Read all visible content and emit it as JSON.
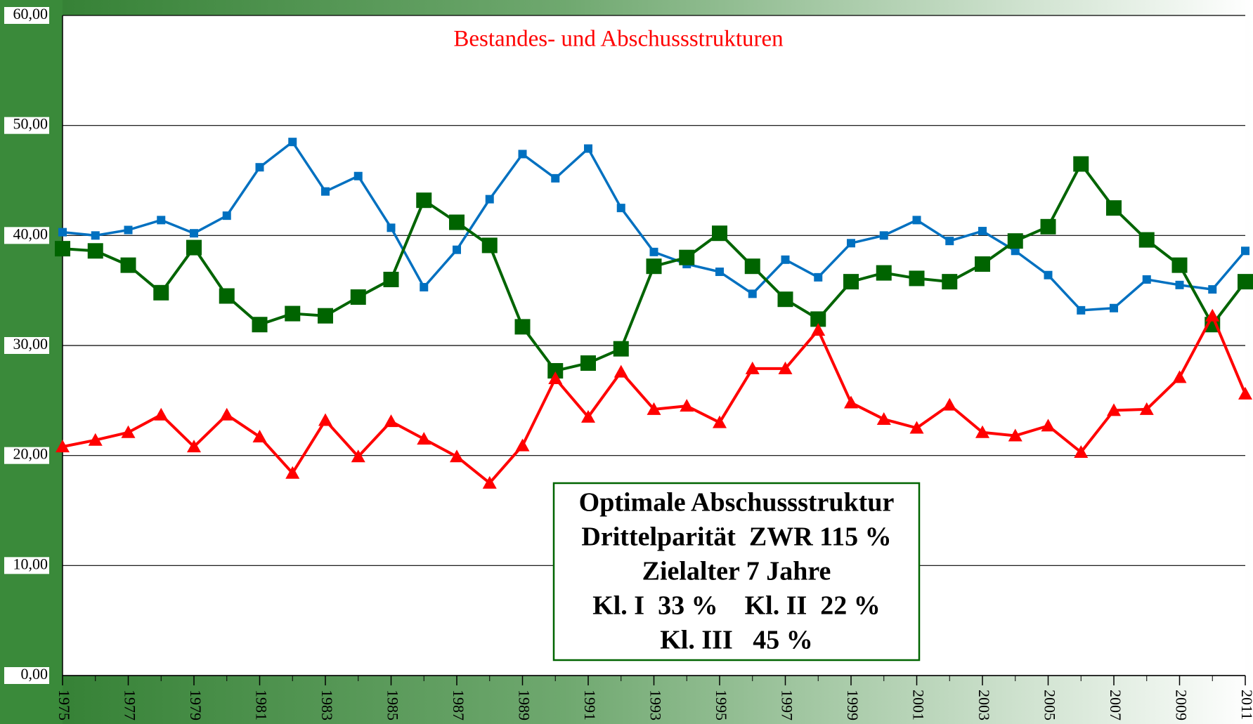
{
  "chart_data": {
    "type": "line",
    "title": "Bestandes- und Abschussstrukturen",
    "x": [
      1975,
      1976,
      1977,
      1978,
      1979,
      1980,
      1981,
      1982,
      1983,
      1984,
      1985,
      1986,
      1987,
      1988,
      1989,
      1990,
      1991,
      1992,
      1993,
      1994,
      1995,
      1996,
      1997,
      1998,
      1999,
      2000,
      2001,
      2002,
      2003,
      2004,
      2005,
      2006,
      2007,
      2008,
      2009,
      2010,
      2011
    ],
    "xlim": [
      1975,
      2011
    ],
    "xticks": [
      1975,
      1977,
      1979,
      1981,
      1983,
      1985,
      1987,
      1989,
      1991,
      1993,
      1995,
      1997,
      1999,
      2001,
      2003,
      2005,
      2007,
      2009,
      2011
    ],
    "ylim": [
      0,
      60
    ],
    "yticks": [
      {
        "value": 0,
        "label": "0,00"
      },
      {
        "value": 10,
        "label": "10,00"
      },
      {
        "value": 20,
        "label": "20,00"
      },
      {
        "value": 30,
        "label": "30,00"
      },
      {
        "value": 40,
        "label": "40,00"
      },
      {
        "value": 50,
        "label": "50,00"
      },
      {
        "value": 60,
        "label": "60,00"
      }
    ],
    "grid": true,
    "series": [
      {
        "color": "#0070c0",
        "marker": "square",
        "values": [
          40.3,
          40.0,
          40.5,
          41.4,
          40.2,
          41.8,
          46.2,
          48.5,
          44.0,
          45.4,
          40.7,
          35.3,
          38.7,
          43.3,
          47.4,
          45.2,
          47.9,
          42.5,
          38.5,
          37.4,
          36.7,
          34.7,
          37.8,
          36.2,
          39.3,
          40.0,
          41.4,
          39.5,
          40.4,
          38.6,
          36.4,
          33.2,
          33.4,
          36.0,
          35.5,
          35.1,
          38.6
        ]
      },
      {
        "color": "#006400",
        "marker": "square",
        "values": [
          38.8,
          38.6,
          37.3,
          34.8,
          38.9,
          34.5,
          31.9,
          32.9,
          32.7,
          34.4,
          36.0,
          43.2,
          41.2,
          39.1,
          31.7,
          27.7,
          28.4,
          29.7,
          37.2,
          38.0,
          40.2,
          37.2,
          34.2,
          32.4,
          35.8,
          36.6,
          36.1,
          35.8,
          37.4,
          39.5,
          40.8,
          46.5,
          42.5,
          39.6,
          37.3,
          31.9,
          35.8
        ]
      },
      {
        "color": "#ff0000",
        "marker": "triangle",
        "values": [
          20.8,
          21.4,
          22.1,
          23.7,
          20.8,
          23.7,
          21.7,
          18.4,
          23.2,
          19.9,
          23.1,
          21.5,
          19.9,
          17.5,
          20.9,
          27.0,
          23.5,
          27.6,
          24.2,
          24.5,
          23.0,
          27.9,
          27.9,
          31.4,
          24.8,
          23.3,
          22.5,
          24.6,
          22.1,
          21.8,
          22.7,
          20.3,
          24.1,
          24.2,
          27.1,
          32.7,
          25.6
        ]
      }
    ],
    "annotation": [
      "Optimale Abschussstruktur",
      "Drittelparität  ZWR 115 %",
      "Zielalter 7 Jahre",
      "Kl. I  33 %    Kl. II  22 %",
      "Kl. III   45 %"
    ]
  }
}
